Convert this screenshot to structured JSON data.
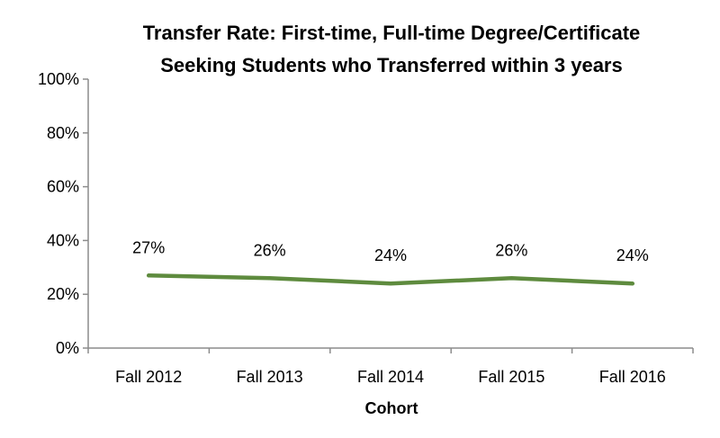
{
  "chart_data": {
    "type": "line",
    "title_lines": [
      "Transfer Rate: First-time, Full-time Degree/Certificate",
      "Seeking Students who Transferred within 3 years"
    ],
    "categories": [
      "Fall 2012",
      "Fall 2013",
      "Fall 2014",
      "Fall 2015",
      "Fall 2016"
    ],
    "series": [
      {
        "values": [
          27,
          26,
          24,
          26,
          24
        ],
        "color": "#5e8b3e"
      }
    ],
    "data_labels": [
      "27%",
      "26%",
      "24%",
      "26%",
      "24%"
    ],
    "xlabel": "Cohort",
    "ylabel": "",
    "ylim": [
      0,
      100
    ],
    "y_ticks": [
      0,
      20,
      40,
      60,
      80,
      100
    ],
    "y_tick_labels": [
      "0%",
      "20%",
      "40%",
      "60%",
      "80%",
      "100%"
    ],
    "grid": false,
    "legend": "none"
  }
}
